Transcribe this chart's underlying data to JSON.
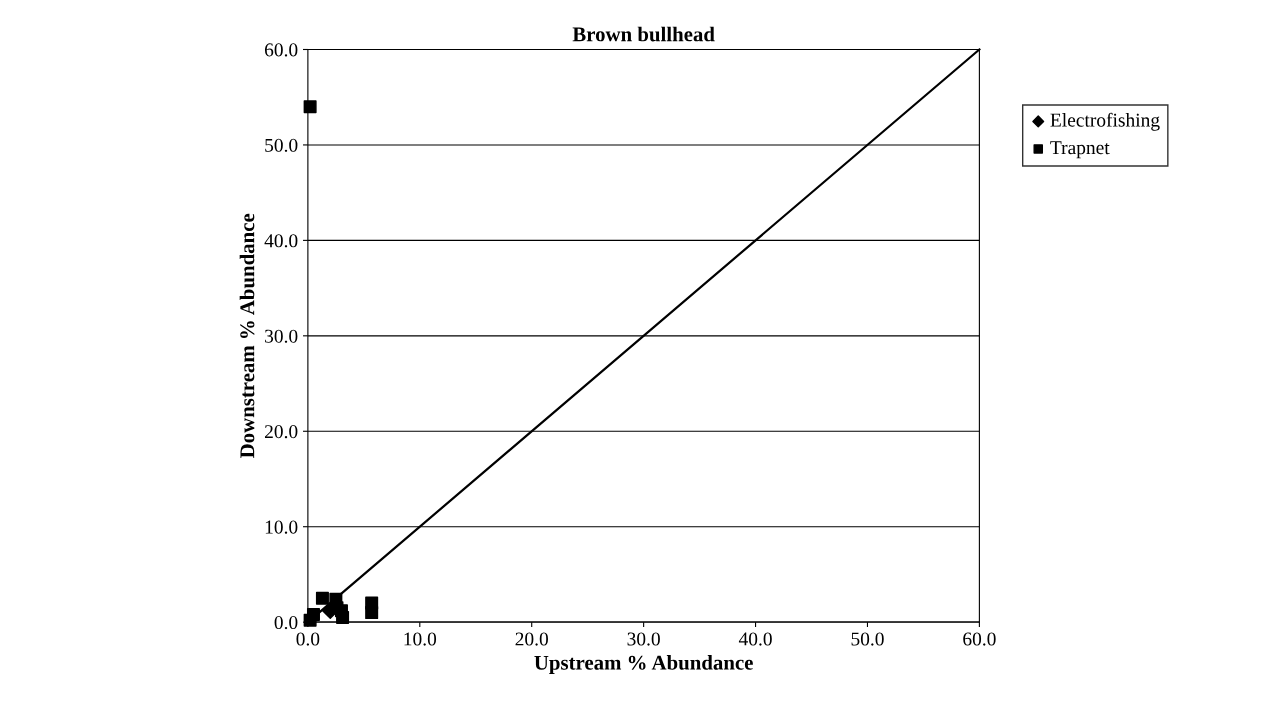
{
  "chart_data": {
    "type": "scatter",
    "title": "Brown bullhead",
    "xlabel": "Upstream % Abundance",
    "ylabel": "Downstream % Abundance",
    "xlim": [
      0,
      60
    ],
    "ylim": [
      0,
      60
    ],
    "xticks": [
      {
        "value": 0,
        "label": "0.0"
      },
      {
        "value": 10,
        "label": "10.0"
      },
      {
        "value": 20,
        "label": "20.0"
      },
      {
        "value": 30,
        "label": "30.0"
      },
      {
        "value": 40,
        "label": "40.0"
      },
      {
        "value": 50,
        "label": "50.0"
      },
      {
        "value": 60,
        "label": "60.0"
      }
    ],
    "yticks": [
      {
        "value": 0,
        "label": "0.0"
      },
      {
        "value": 10,
        "label": "10.0"
      },
      {
        "value": 20,
        "label": "20.0"
      },
      {
        "value": 30,
        "label": "30.0"
      },
      {
        "value": 40,
        "label": "40.0"
      },
      {
        "value": 50,
        "label": "50.0"
      },
      {
        "value": 60,
        "label": "60.0"
      }
    ],
    "grid": "y",
    "legend": "right",
    "series": [
      {
        "name": "Electrofishing",
        "color": "#000000",
        "marker": "diamond",
        "x": [
          2.0
        ],
        "values": [
          1.2
        ]
      },
      {
        "name": "Trapnet",
        "color": "#000000",
        "marker": "square",
        "x": [
          0.2,
          1.3,
          2.5,
          2.6,
          3.0,
          3.1,
          5.7,
          5.7,
          0.5,
          0.2
        ],
        "values": [
          54.0,
          2.5,
          2.4,
          1.5,
          1.2,
          0.5,
          2.0,
          1.0,
          0.8,
          0.2
        ]
      },
      {
        "type": "line",
        "color": "#000000",
        "marker": "none",
        "x": [
          0,
          60
        ],
        "values": [
          0,
          60
        ]
      }
    ]
  }
}
